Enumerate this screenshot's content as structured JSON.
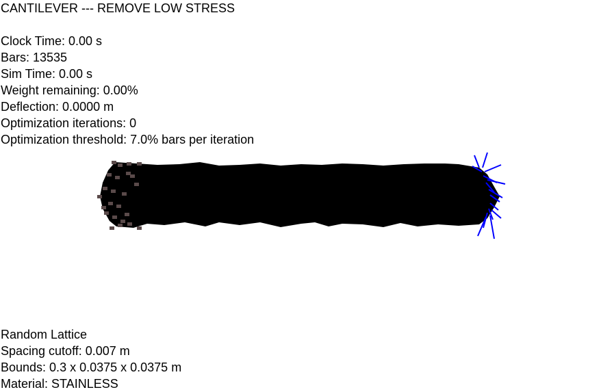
{
  "header": {
    "title": "CANTILEVER --- REMOVE LOW STRESS"
  },
  "stats": {
    "clock_time": "Clock Time: 0.00 s",
    "bars": "Bars: 13535",
    "sim_time": "Sim Time: 0.00 s",
    "weight_remaining": "Weight remaining: 0.00%",
    "deflection": "Deflection: 0.0000 m",
    "optimization_iterations": "Optimization iterations: 0",
    "optimization_threshold": "Optimization threshold: 7.0% bars per iteration"
  },
  "lattice": {
    "type": "Random Lattice",
    "spacing_cutoff": "Spacing cutoff: 0.007 m",
    "bounds": "Bounds: 0.3 x 0.0375 x 0.0375 m",
    "material": "Material: STAINLESS"
  },
  "colors": {
    "background": "#ffffff",
    "lattice": "#000000",
    "fixed_support": "#5a4a4a",
    "load_arrows": "#0000ff"
  },
  "icons": {
    "fixed_support": "fixed-support-markers",
    "load": "load-force-arrows"
  }
}
